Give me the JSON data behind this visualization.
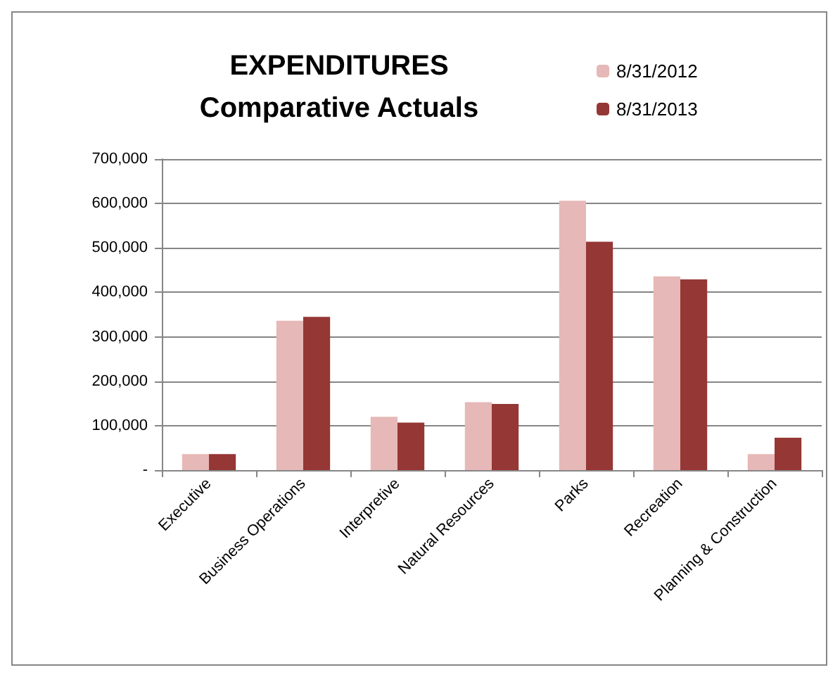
{
  "chart_data": {
    "type": "bar",
    "title": "EXPENDITURES\nComparative Actuals",
    "categories": [
      "Executive",
      "Business Operations",
      "Interpretive",
      "Natural Resources",
      "Parks",
      "Recreation",
      "Planning & Construction"
    ],
    "series": [
      {
        "name": "8/31/2012",
        "color": "#e6b8b7",
        "values": [
          36000,
          336000,
          120000,
          153000,
          606000,
          436000,
          36000
        ]
      },
      {
        "name": "8/31/2013",
        "color": "#953735",
        "values": [
          36000,
          345000,
          107000,
          149000,
          514000,
          429000,
          73000
        ]
      }
    ],
    "ylim": [
      0,
      700000
    ],
    "yticks": [
      {
        "value": 0,
        "label": "-"
      },
      {
        "value": 100000,
        "label": "100,000"
      },
      {
        "value": 200000,
        "label": "200,000"
      },
      {
        "value": 300000,
        "label": "300,000"
      },
      {
        "value": 400000,
        "label": "400,000"
      },
      {
        "value": 500000,
        "label": "500,000"
      },
      {
        "value": 600000,
        "label": "600,000"
      },
      {
        "value": 700000,
        "label": "700,000"
      }
    ],
    "grid": "y",
    "legend": "top right"
  }
}
